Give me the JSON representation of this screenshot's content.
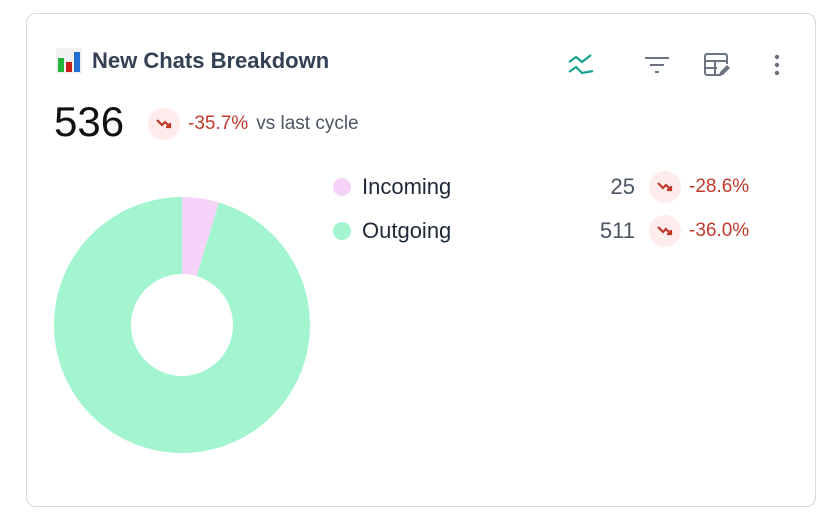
{
  "widget": {
    "title": "New Chats Breakdown",
    "title_icon": "bar-chart-emoji-icon",
    "toolbar_icons": [
      "trend-lines-icon",
      "filter-icon",
      "edit-table-icon",
      "more-vertical-icon"
    ],
    "total": "536",
    "change": "-35.7%",
    "change_suffix": "vs last cycle",
    "trend_icon": "trending-down-icon"
  },
  "colors": {
    "incoming": "#f6d4f7",
    "outgoing": "#a3f5cf",
    "negative": "#c0392b",
    "accent": "#14a38b"
  },
  "chart_data": {
    "type": "pie",
    "donut": true,
    "categories": [
      "Incoming",
      "Outgoing"
    ],
    "values": [
      25,
      511
    ]
  },
  "legend": [
    {
      "label": "Incoming",
      "value": "25",
      "change": "-28.6%"
    },
    {
      "label": "Outgoing",
      "value": "511",
      "change": "-36.0%"
    }
  ]
}
